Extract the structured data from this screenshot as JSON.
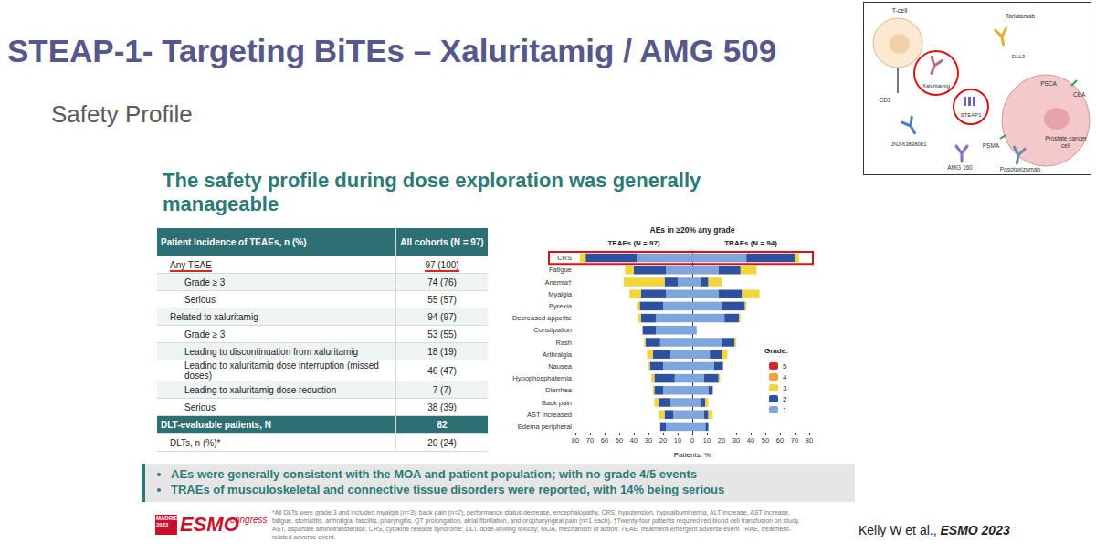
{
  "title": "STEAP-1- Targeting BiTEs – Xaluritamig / AMG 509",
  "subtitle": "Safety Profile",
  "heading": "The safety profile during dose exploration was generally manageable",
  "table": {
    "header": [
      "Patient Incidence of TEAEs, n (%)",
      "All cohorts (N = 97)"
    ],
    "rows": [
      [
        "Any TEAE",
        "97 (100)"
      ],
      [
        "Grade ≥ 3",
        "74 (76)"
      ],
      [
        "Serious",
        "55 (57)"
      ],
      [
        "Related to xaluritamig",
        "94 (97)"
      ],
      [
        "Grade ≥ 3",
        "53 (55)"
      ],
      [
        "Leading to discontinuation from xaluritamig",
        "18 (19)"
      ],
      [
        "Leading to xaluritamig dose interruption (missed doses)",
        "46 (47)"
      ],
      [
        "Leading to xaluritamig dose reduction",
        "7 (7)"
      ],
      [
        "Serious",
        "38 (39)"
      ]
    ],
    "subheader": [
      "DLT-evaluable patients, N",
      "82"
    ],
    "subrows": [
      [
        "DLTs, n (%)*",
        "20 (24)"
      ]
    ]
  },
  "chart_data": {
    "type": "bar",
    "orientation": "horizontal",
    "stacked": true,
    "title": "AEs in ≥20% any grade",
    "x_label": "Patients, %",
    "legend": "right",
    "legend_title": "Grade:",
    "categories": [
      "CRS",
      "Fatigue",
      "Anemia†",
      "Myalgia",
      "Pyrexia",
      "Decreased appetite",
      "Constipation",
      "Rash",
      "Arthralgia",
      "Nausea",
      "Hypophosphatemia",
      "Diarrhea",
      "Back pain",
      "AST increased",
      "Edema peripheral"
    ],
    "panels": [
      {
        "title": "TEAEs (N = 97)",
        "xlim": [
          80,
          0
        ],
        "xticks": [
          0,
          10,
          20,
          30,
          40,
          50,
          60,
          70,
          80
        ],
        "series": [
          {
            "name": "1",
            "color": "#7ea6dc",
            "values": [
              38,
              18,
              10,
              18,
              20,
              25,
              25,
              22,
              15,
              20,
              12,
              20,
              15,
              13,
              18
            ]
          },
          {
            "name": "2",
            "color": "#2f4f9f",
            "values": [
              35,
              22,
              9,
              17,
              16,
              10,
              9,
              10,
              12,
              9,
              14,
              6,
              8,
              6,
              4
            ]
          },
          {
            "name": "3",
            "color": "#f2d43d",
            "values": [
              4,
              6,
              28,
              8,
              2,
              2,
              0,
              1,
              4,
              1,
              2,
              1,
              3,
              4,
              0
            ]
          },
          {
            "name": "4",
            "color": "#f0a13a",
            "values": [
              0,
              0,
              0,
              0,
              0,
              0,
              0,
              0,
              0,
              0,
              0,
              0,
              0,
              0,
              0
            ]
          },
          {
            "name": "5",
            "color": "#d7262b",
            "values": [
              0,
              0,
              0,
              0,
              0,
              0,
              0,
              0,
              0,
              0,
              0,
              0,
              0,
              0,
              0
            ]
          }
        ]
      },
      {
        "title": "TRAEs (N = 94)",
        "xlim": [
          0,
          80
        ],
        "xticks": [
          10,
          20,
          30,
          40,
          50,
          60,
          70,
          80
        ],
        "series": [
          {
            "name": "1",
            "color": "#7ea6dc",
            "values": [
              37,
              18,
              6,
              18,
              20,
              22,
              3,
              20,
              12,
              15,
              8,
              11,
              6,
              8,
              9
            ]
          },
          {
            "name": "2",
            "color": "#2f4f9f",
            "values": [
              33,
              15,
              5,
              16,
              16,
              10,
              0,
              9,
              8,
              6,
              10,
              3,
              3,
              3,
              2
            ]
          },
          {
            "name": "3",
            "color": "#f2d43d",
            "values": [
              3,
              11,
              9,
              12,
              1,
              1,
              0,
              1,
              4,
              0,
              1,
              0,
              2,
              3,
              0
            ]
          },
          {
            "name": "4",
            "color": "#f0a13a",
            "values": [
              0,
              0,
              0,
              0,
              0,
              0,
              0,
              0,
              0,
              0,
              0,
              0,
              0,
              0,
              0
            ]
          },
          {
            "name": "5",
            "color": "#d7262b",
            "values": [
              0,
              0,
              0,
              0,
              0,
              0,
              0,
              0,
              0,
              0,
              0,
              0,
              0,
              0,
              0
            ]
          }
        ]
      }
    ]
  },
  "bullets": [
    "AEs were generally consistent with the MOA and patient population; with no grade 4/5 events",
    "TRAEs of musculoskeletal and connective tissue disorders were reported, with 14% being serious"
  ],
  "footnotes": [
    "*All DLTs were grade 3 and included myalgia (n=3), back pain (n=2), performance status decrease, encephalopathy, CRS, hypotension, hypoalbuminemia, ALT increase, AST increase, fatigue, stomatitis, arthralgia, fasciitis, pharyngitis, QT prolongation, atrial fibrillation, and oropharyngeal pain (n=1 each). †Twenty-four patients required red blood cell transfusion on study.",
    "AST, aspartate aminotransferase; CRS, cytokine release syndrome; DLT, dose-limiting toxicity; MOA, mechanism of action; TEAE, treatment-emergent adverse event TRAE, treatment-related adverse event."
  ],
  "logo": {
    "city": "MADRID 2023",
    "name": "ESMO",
    "word": "congress"
  },
  "citation": {
    "authors": "Kelly W et al.,",
    "source": "ESMO 2023"
  },
  "inset": {
    "t_cell": "T-cell",
    "cd3": "CD3",
    "xaluritamig": "Xaluritamig",
    "tarlatamab": "Tarlatamab",
    "dll3": "DLL3",
    "steap1": "STEAP1",
    "psca": "PSCA",
    "cea": "CEA",
    "jnj": "JNJ-63898081",
    "psma": "PSMA",
    "amg160": "AMG 160",
    "pasotuxizumab": "Pasotuxizumab",
    "cell": "Prostate cancer cell"
  }
}
